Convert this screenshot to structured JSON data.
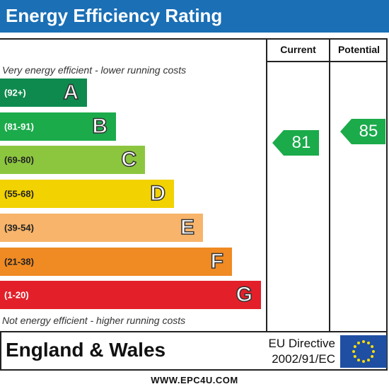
{
  "title": "Energy Efficiency Rating",
  "columns": {
    "current": "Current",
    "potential": "Potential"
  },
  "notes": {
    "top": "Very energy efficient - lower running costs",
    "bottom": "Not energy efficient - higher running costs"
  },
  "footer": {
    "region": "England & Wales",
    "directive_line1": "EU Directive",
    "directive_line2": "2002/91/EC",
    "website": "WWW.EPC4U.COM"
  },
  "colors": {
    "title_bar": "#1a6fb5",
    "flag": "#1f4fa3",
    "flag_stars": "#ffdd00"
  },
  "chart_data": {
    "type": "bar",
    "title": "Energy Efficiency Rating",
    "bands": [
      {
        "letter": "A",
        "range": "(92+)",
        "min": 92,
        "max": 100,
        "color": "#0f8a4f"
      },
      {
        "letter": "B",
        "range": "(81-91)",
        "min": 81,
        "max": 91,
        "color": "#1bab4b"
      },
      {
        "letter": "C",
        "range": "(69-80)",
        "min": 69,
        "max": 80,
        "color": "#8cc63f"
      },
      {
        "letter": "D",
        "range": "(55-68)",
        "min": 55,
        "max": 68,
        "color": "#f2d200"
      },
      {
        "letter": "E",
        "range": "(39-54)",
        "min": 39,
        "max": 54,
        "color": "#f7b46a"
      },
      {
        "letter": "F",
        "range": "(21-38)",
        "min": 21,
        "max": 38,
        "color": "#f08a22"
      },
      {
        "letter": "G",
        "range": "(1-20)",
        "min": 1,
        "max": 20,
        "color": "#e3202a"
      }
    ],
    "current": {
      "value": "81",
      "band": "B",
      "color": "#1bab4b"
    },
    "potential": {
      "value": "85",
      "band": "B",
      "color": "#1bab4b"
    }
  }
}
